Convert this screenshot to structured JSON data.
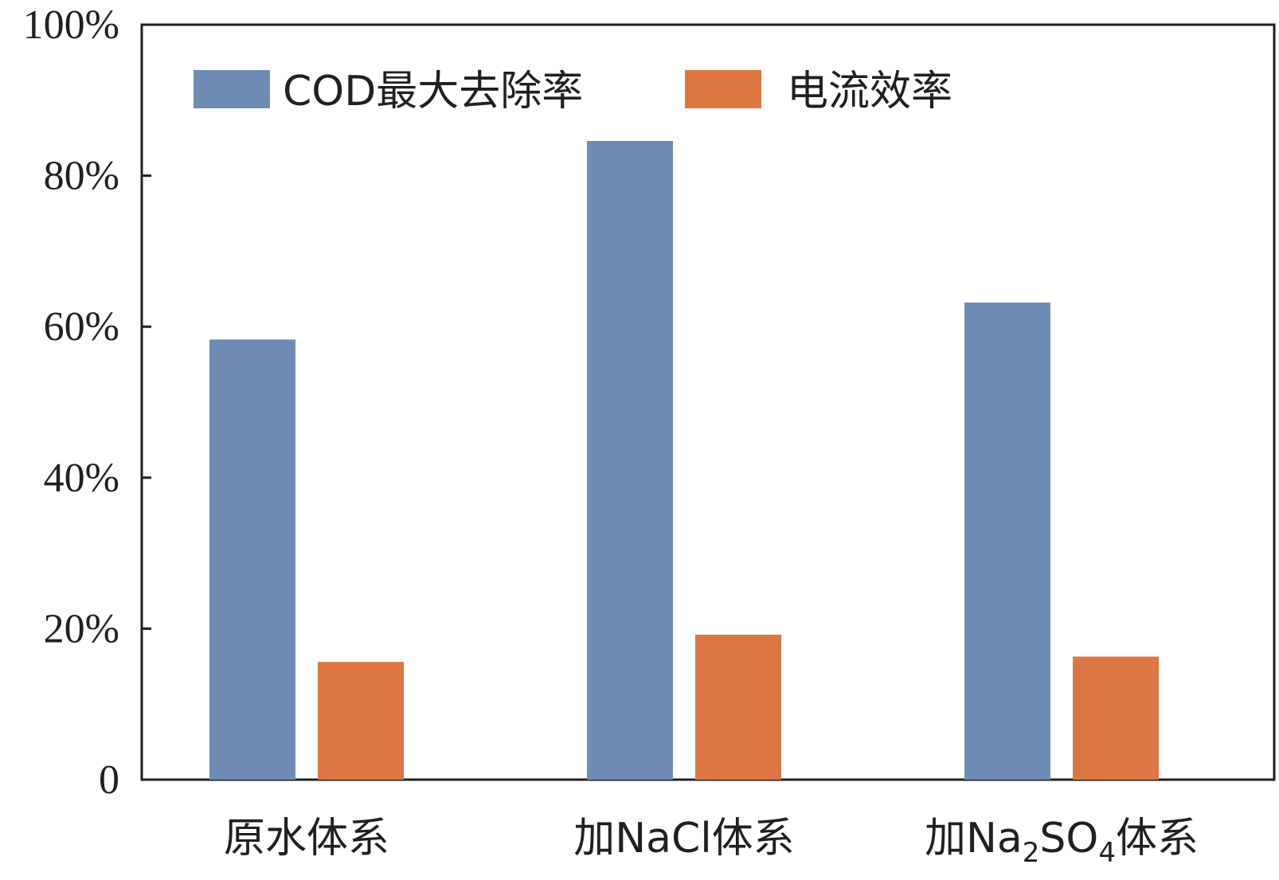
{
  "chart_data": {
    "type": "bar",
    "categories": [
      {
        "prefix": "原水体系"
      },
      {
        "prefix": "加NaCl体系"
      },
      {
        "prefix": "加Na",
        "sub1": "2",
        "mid": "SO",
        "sub2": "4",
        "suffix": "体系"
      }
    ],
    "series": [
      {
        "name": "COD最大去除率",
        "color": "#6e8cb6",
        "values": [
          58.3,
          84.6,
          63.2
        ]
      },
      {
        "name": "电流效率",
        "color": "#dc7744",
        "values": [
          15.6,
          19.2,
          16.3
        ]
      }
    ],
    "ylim": [
      0,
      100
    ],
    "yticks": [
      0,
      20,
      40,
      60,
      80,
      100
    ],
    "ytick_labels": [
      "0",
      "20%",
      "40%",
      "60%",
      "80%",
      "100%"
    ],
    "legend_position": "top-left",
    "grid": false,
    "title": "",
    "xlabel": "",
    "ylabel": ""
  }
}
